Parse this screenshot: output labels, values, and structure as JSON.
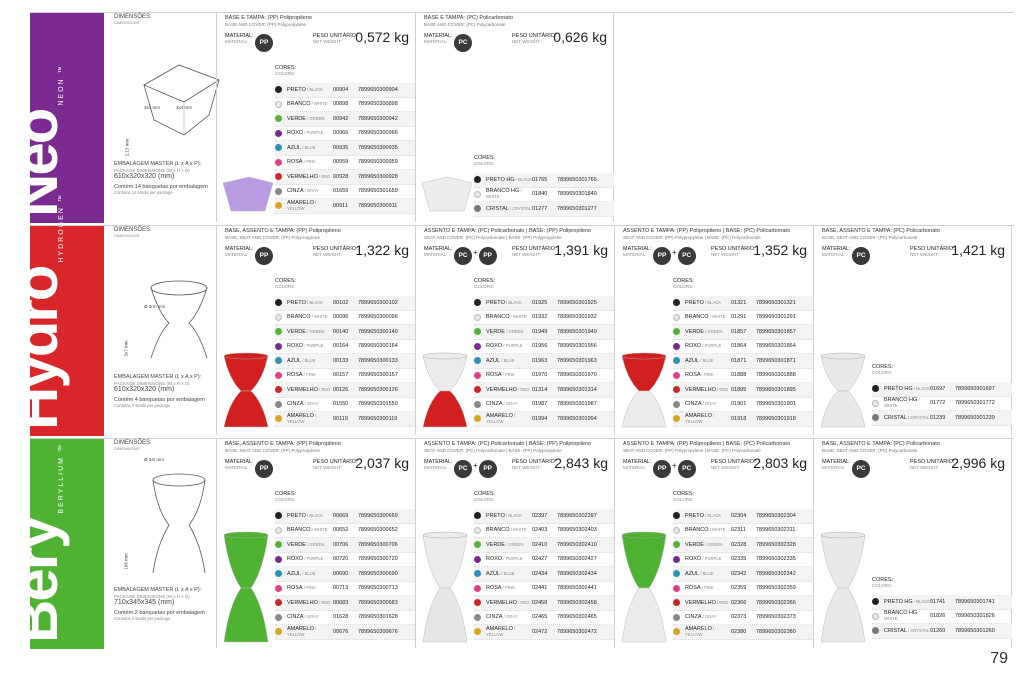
{
  "page_number": "79",
  "labels": {
    "dimensions": "DIMENSÕES:",
    "dimensions_en": "DIMENSIONS:",
    "material": "MATERIAL:",
    "material_en": "MATERIAL:",
    "weight": "PESO UNITÁRIO:",
    "weight_en": "NET WEIGHT:",
    "colors": "CORES:",
    "colors_en": "COLORS:",
    "pack": "EMBALAGEM MASTER (L x A x P):",
    "pack_en": "PACKAGE DIMENSIONS (W x H x D)"
  },
  "products": [
    {
      "name": "Neo",
      "tm": "™",
      "sub": "NEON",
      "band_color": "#7b2a8f",
      "dims_top": [
        "3x4 mm",
        "3x4 mm",
        "2,13 mm"
      ],
      "pack_size": "610x320x320 (mm)",
      "pack_note": "Contém 14 banquetas por embalagem",
      "pack_note_en": "Contains 14 stools per package",
      "variants": [
        {
          "head": "BASE E TAMPA: (PP) Polipropileno",
          "head_en": "BASE AND COVER: (PP) Polypropylene",
          "materials": [
            "PP"
          ],
          "weight": "0,572 kg",
          "product_color": "#b89be0",
          "colors": [
            {
              "name": "PRETO",
              "en": "BLACK",
              "code": "00904",
              "ean": "7899650300904",
              "color": "#222222"
            },
            {
              "name": "BRANCO",
              "en": "WHITE",
              "code": "00898",
              "ean": "7899650300898",
              "color": "#e8e8e8"
            },
            {
              "name": "VERDE",
              "en": "GREEN",
              "code": "00942",
              "ean": "7899650300942",
              "color": "#56b33a"
            },
            {
              "name": "ROXO",
              "en": "PURPLE",
              "code": "00966",
              "ean": "7899650300966",
              "color": "#7b2a8f"
            },
            {
              "name": "AZUL",
              "en": "BLUE",
              "code": "00935",
              "ean": "7899650300935",
              "color": "#2e8fb8"
            },
            {
              "name": "ROSA",
              "en": "PINK",
              "code": "00959",
              "ean": "7899650300959",
              "color": "#e23f88"
            },
            {
              "name": "VERMELHO",
              "en": "RED",
              "code": "00928",
              "ean": "7899650300928",
              "color": "#c82a2a"
            },
            {
              "name": "CINZA",
              "en": "GRAY",
              "code": "01659",
              "ean": "7899650301659",
              "color": "#888888"
            },
            {
              "name": "AMARELO",
              "en": "YELLOW",
              "code": "00911",
              "ean": "7899650300911",
              "color": "#d8a523"
            }
          ]
        },
        {
          "head": "BASE E TAMPA: (PC) Policarbonato",
          "head_en": "BASE AND COVER: (PC) Polycarbonate",
          "materials": [
            "PC"
          ],
          "weight": "0,626 kg",
          "product_color": "#eeeeee",
          "colors": [
            {
              "name": "PRETO HG",
              "en": "BLACK",
              "code": "01765",
              "ean": "7899650301765",
              "color": "#222222"
            },
            {
              "name": "BRANCO HG",
              "en": "WHITE",
              "code": "01840",
              "ean": "7899650301840",
              "color": "#e8e8e8"
            },
            {
              "name": "CRISTAL",
              "en": "CRYSTAL",
              "code": "01277",
              "ean": "7899650301277",
              "color": "#777777"
            }
          ]
        }
      ]
    },
    {
      "name": "Hydro",
      "tm": "™",
      "sub": "HYDROGEN",
      "band_color": "#d9262b",
      "dims_top": [
        "Ø 3rm mm",
        "3x7 mm"
      ],
      "pack_size": "610x320x320 (mm)",
      "pack_note": "Contém 4 banquetas por embalagem",
      "pack_note_en": "Contains 4 stools per package",
      "variants": [
        {
          "head": "BASE, ASSENTO E TAMPA: (PP) Polipropileno",
          "head_en": "BASE, SEAT AND COVER: (PP) Polypropylene",
          "materials": [
            "PP"
          ],
          "weight": "1,322 kg",
          "product_color": "#d21f1f",
          "colors": [
            {
              "name": "PRETO",
              "en": "BLACK",
              "code": "00102",
              "ean": "7899650300102",
              "color": "#222222"
            },
            {
              "name": "BRANCO",
              "en": "WHITE",
              "code": "00096",
              "ean": "7899650300096",
              "color": "#e8e8e8"
            },
            {
              "name": "VERDE",
              "en": "GREEN",
              "code": "00140",
              "ean": "7899650300140",
              "color": "#56b33a"
            },
            {
              "name": "ROXO",
              "en": "PURPLE",
              "code": "00164",
              "ean": "7899650300164",
              "color": "#7b2a8f"
            },
            {
              "name": "AZUL",
              "en": "BLUE",
              "code": "00133",
              "ean": "7899650300133",
              "color": "#2e8fb8"
            },
            {
              "name": "ROSA",
              "en": "PINK",
              "code": "00157",
              "ean": "7899650300157",
              "color": "#e23f88"
            },
            {
              "name": "VERMELHO",
              "en": "RED",
              "code": "00126",
              "ean": "7899650300126",
              "color": "#c82a2a"
            },
            {
              "name": "CINZA",
              "en": "GRAY",
              "code": "01550",
              "ean": "7899650301550",
              "color": "#888888"
            },
            {
              "name": "AMARELO",
              "en": "YELLOW",
              "code": "00119",
              "ean": "7899650300119",
              "color": "#d8a523"
            }
          ]
        },
        {
          "head": "ASSENTO E TAMPA: (PC) Policarbonato | BASE: (PP) Polipropileno",
          "head_en": "SEAT AND COVER: (PC) Polycarbonate | BASE: (PP) Polypropylene",
          "materials": [
            "PC",
            "PP"
          ],
          "weight": "1,391 kg",
          "product_color": "#d21f1f",
          "colors": [
            {
              "name": "PRETO",
              "en": "BLACK",
              "code": "01925",
              "ean": "7899650301925",
              "color": "#222222"
            },
            {
              "name": "BRANCO",
              "en": "WHITE",
              "code": "01932",
              "ean": "7899650301932",
              "color": "#e8e8e8"
            },
            {
              "name": "VERDE",
              "en": "GREEN",
              "code": "01949",
              "ean": "7899650301949",
              "color": "#56b33a"
            },
            {
              "name": "ROXO",
              "en": "PURPLE",
              "code": "01956",
              "ean": "7899650301956",
              "color": "#7b2a8f"
            },
            {
              "name": "AZUL",
              "en": "BLUE",
              "code": "01963",
              "ean": "7899650301963",
              "color": "#2e8fb8"
            },
            {
              "name": "ROSA",
              "en": "PINK",
              "code": "01970",
              "ean": "7899650301970",
              "color": "#e23f88"
            },
            {
              "name": "VERMELHO",
              "en": "RED",
              "code": "01314",
              "ean": "7899650301314",
              "color": "#c82a2a"
            },
            {
              "name": "CINZA",
              "en": "GRAY",
              "code": "01987",
              "ean": "7899650301987",
              "color": "#888888"
            },
            {
              "name": "AMARELO",
              "en": "YELLOW",
              "code": "01994",
              "ean": "7899650301994",
              "color": "#d8a523"
            }
          ]
        },
        {
          "head": "ASSENTO E TAMPA: (PP) Polipropileno | BASE: (PC) Policarbonato",
          "head_en": "SEAT AND COVER: (PP) Polypropylene | BASE: (PC) Polycarbonate",
          "materials": [
            "PP",
            "PC"
          ],
          "weight": "1,352 kg",
          "product_color": "#d21f1f",
          "colors": [
            {
              "name": "PRETO",
              "en": "BLACK",
              "code": "01321",
              "ean": "7899650301321",
              "color": "#222222"
            },
            {
              "name": "BRANCO",
              "en": "WHITE",
              "code": "01291",
              "ean": "7899650301291",
              "color": "#e8e8e8"
            },
            {
              "name": "VERDE",
              "en": "GREEN",
              "code": "01857",
              "ean": "7899650301857",
              "color": "#56b33a"
            },
            {
              "name": "ROXO",
              "en": "PURPLE",
              "code": "01864",
              "ean": "7899650301864",
              "color": "#7b2a8f"
            },
            {
              "name": "AZUL",
              "en": "BLUE",
              "code": "01871",
              "ean": "7899650301871",
              "color": "#2e8fb8"
            },
            {
              "name": "ROSA",
              "en": "PINK",
              "code": "01888",
              "ean": "7899650301888",
              "color": "#e23f88"
            },
            {
              "name": "VERMELHO",
              "en": "RED",
              "code": "01895",
              "ean": "7899650301895",
              "color": "#c82a2a"
            },
            {
              "name": "CINZA",
              "en": "GRAY",
              "code": "01901",
              "ean": "7899650301901",
              "color": "#888888"
            },
            {
              "name": "AMARELO",
              "en": "YELLOW",
              "code": "01918",
              "ean": "7899650301918",
              "color": "#d8a523"
            }
          ]
        },
        {
          "head": "BASE, ASSENTO E TAMPA: (PC) Policarbonato",
          "head_en": "BASE, SEAT AND COVER: (PC) Polycarbonate",
          "materials": [
            "PC"
          ],
          "weight": "1,421 kg",
          "product_color": "#e9e9e9",
          "colors": [
            {
              "name": "PRETO HG",
              "en": "BLACK",
              "code": "01697",
              "ean": "7899650301697",
              "color": "#222222"
            },
            {
              "name": "BRANCO HG",
              "en": "WHITE",
              "code": "01772",
              "ean": "7899650301772",
              "color": "#e8e8e8"
            },
            {
              "name": "CRISTAL",
              "en": "CRYSTAL",
              "code": "01239",
              "ean": "7899650301239",
              "color": "#777777"
            }
          ]
        }
      ]
    },
    {
      "name": "Bery",
      "tm": "™",
      "sub": "BERYLLIUM",
      "band_color": "#4fb233",
      "dims_top": [
        "Ø 34r mm",
        "168 mm"
      ],
      "pack_size": "710x345x345 (mm)",
      "pack_note": "Contém 2 banquetas por embalagem",
      "pack_note_en": "Contains 2 stools per package",
      "variants": [
        {
          "head": "BASE, ASSENTO E TAMPA: (PP) Polipropileno",
          "head_en": "BASE, SEAT AND COVER: (PP) Polypropylene",
          "materials": [
            "PP"
          ],
          "weight": "2,037 kg",
          "product_color": "#4fb233",
          "colors": [
            {
              "name": "PRETO",
              "en": "BLACK",
              "code": "00669",
              "ean": "7899650300669",
              "color": "#222222"
            },
            {
              "name": "BRANCO",
              "en": "WHITE",
              "code": "00652",
              "ean": "7899650300652",
              "color": "#e8e8e8"
            },
            {
              "name": "VERDE",
              "en": "GREEN",
              "code": "00706",
              "ean": "7899650300706",
              "color": "#56b33a"
            },
            {
              "name": "ROXO",
              "en": "PURPLE",
              "code": "00720",
              "ean": "7899650300720",
              "color": "#7b2a8f"
            },
            {
              "name": "AZUL",
              "en": "BLUE",
              "code": "00690",
              "ean": "7899650300690",
              "color": "#2e8fb8"
            },
            {
              "name": "ROSA",
              "en": "PINK",
              "code": "00713",
              "ean": "7899650300713",
              "color": "#e23f88"
            },
            {
              "name": "VERMELHO",
              "en": "RED",
              "code": "00683",
              "ean": "7899650300683",
              "color": "#c82a2a"
            },
            {
              "name": "CINZA",
              "en": "GRAY",
              "code": "01628",
              "ean": "7899650301628",
              "color": "#888888"
            },
            {
              "name": "AMARELO",
              "en": "YELLOW",
              "code": "00676",
              "ean": "7899650300676",
              "color": "#d8a523"
            }
          ]
        },
        {
          "head": "ASSENTO E TAMPA: (PC) Policarbonato | BASE: (PP) Polipropileno",
          "head_en": "SEAT AND COVER: (PC) Polycarbonate | BASE: (PP) Polypropylene",
          "materials": [
            "PC",
            "PP"
          ],
          "weight": "2,843 kg",
          "product_color": "#e6e6e6",
          "colors": [
            {
              "name": "PRETO",
              "en": "BLACK",
              "code": "02397",
              "ean": "7899650302397",
              "color": "#222222"
            },
            {
              "name": "BRANCO",
              "en": "WHITE",
              "code": "02403",
              "ean": "7899650302403",
              "color": "#e8e8e8"
            },
            {
              "name": "VERDE",
              "en": "GREEN",
              "code": "02410",
              "ean": "7899650302410",
              "color": "#56b33a"
            },
            {
              "name": "ROXO",
              "en": "PURPLE",
              "code": "02427",
              "ean": "7899650302427",
              "color": "#7b2a8f"
            },
            {
              "name": "AZUL",
              "en": "BLUE",
              "code": "02434",
              "ean": "7899650302434",
              "color": "#2e8fb8"
            },
            {
              "name": "ROSA",
              "en": "PINK",
              "code": "02441",
              "ean": "7899650302441",
              "color": "#e23f88"
            },
            {
              "name": "VERMELHO",
              "en": "RED",
              "code": "02458",
              "ean": "7899650302458",
              "color": "#c82a2a"
            },
            {
              "name": "CINZA",
              "en": "GRAY",
              "code": "02465",
              "ean": "7899650302465",
              "color": "#888888"
            },
            {
              "name": "AMARELO",
              "en": "YELLOW",
              "code": "02472",
              "ean": "7899650302472",
              "color": "#d8a523"
            }
          ]
        },
        {
          "head": "ASSENTO E TAMPA: (PP) Polipropileno | BASE: (PC) Policarbonato",
          "head_en": "SEAT AND COVER: (PP) Polypropylene | BASE: (PC) Polycarbonate",
          "materials": [
            "PP",
            "PC"
          ],
          "weight": "2,803 kg",
          "product_color": "#4fb233",
          "colors": [
            {
              "name": "PRETO",
              "en": "BLACK",
              "code": "02304",
              "ean": "7899650302304",
              "color": "#222222"
            },
            {
              "name": "BRANCO",
              "en": "WHITE",
              "code": "02311",
              "ean": "7899650302311",
              "color": "#e8e8e8"
            },
            {
              "name": "VERDE",
              "en": "GREEN",
              "code": "02328",
              "ean": "7899650302328",
              "color": "#56b33a"
            },
            {
              "name": "ROXO",
              "en": "PURPLE",
              "code": "02335",
              "ean": "7899650302335",
              "color": "#7b2a8f"
            },
            {
              "name": "AZUL",
              "en": "BLUE",
              "code": "02342",
              "ean": "7899650302342",
              "color": "#2e8fb8"
            },
            {
              "name": "ROSA",
              "en": "PINK",
              "code": "02359",
              "ean": "7899650302359",
              "color": "#e23f88"
            },
            {
              "name": "VERMELHO",
              "en": "RED",
              "code": "02366",
              "ean": "7899650302366",
              "color": "#c82a2a"
            },
            {
              "name": "CINZA",
              "en": "GRAY",
              "code": "02373",
              "ean": "7899650302373",
              "color": "#888888"
            },
            {
              "name": "AMARELO",
              "en": "YELLOW",
              "code": "02380",
              "ean": "7899650302380",
              "color": "#d8a523"
            }
          ]
        },
        {
          "head": "BASE, ASSENTO E TAMPA: (PC) Policarbonato",
          "head_en": "BASE, SEAT AND COVER: (PC) Polycarbonate",
          "materials": [
            "PC"
          ],
          "weight": "2,996 kg",
          "product_color": "#e9e9e9",
          "colors": [
            {
              "name": "PRETO HG",
              "en": "BLACK",
              "code": "01741",
              "ean": "7899650301741",
              "color": "#222222"
            },
            {
              "name": "BRANCO HG",
              "en": "WHITE",
              "code": "01826",
              "ean": "7899650301826",
              "color": "#e8e8e8"
            },
            {
              "name": "CRISTAL",
              "en": "CRYSTAL",
              "code": "01260",
              "ean": "7899650301260",
              "color": "#777777"
            }
          ]
        }
      ]
    }
  ]
}
